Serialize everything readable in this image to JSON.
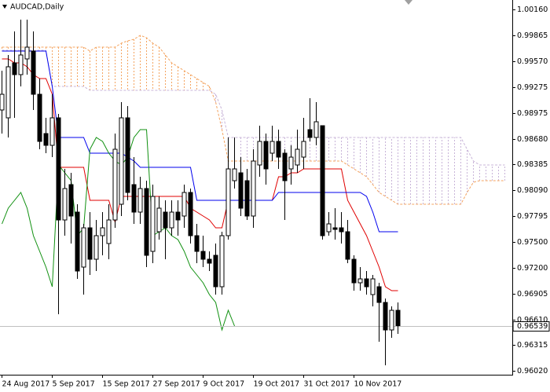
{
  "chart_data": {
    "type": "candlestick",
    "title": "AUDCAD,Daily",
    "categories": [
      "24 Aug 2017",
      null,
      null,
      null,
      null,
      null,
      null,
      null,
      "5 Sep 2017",
      null,
      null,
      null,
      null,
      null,
      null,
      null,
      "15 Sep 2017",
      null,
      null,
      null,
      null,
      null,
      null,
      null,
      "27 Sep 2017",
      null,
      null,
      null,
      null,
      null,
      null,
      null,
      "9 Oct 2017",
      null,
      null,
      null,
      null,
      null,
      null,
      null,
      "19 Oct 2017",
      null,
      null,
      null,
      null,
      null,
      null,
      null,
      "31 Oct 2017",
      null,
      null,
      null,
      null,
      null,
      null,
      null,
      "10 Nov 2017",
      null,
      null,
      null,
      null,
      null,
      null,
      null,
      null,
      null,
      null,
      null,
      null,
      null,
      null,
      null,
      null,
      null,
      null,
      null,
      null,
      null,
      null,
      null,
      null
    ],
    "open": [
      0.9901,
      0.9892,
      0.9955,
      0.99415,
      0.99595,
      0.99685,
      0.9919,
      0.9874,
      0.98605,
      0.9892,
      0.9775,
      0.98155,
      0.9784,
      0.9721,
      0.9766,
      0.973,
      0.9757,
      0.9748,
      0.9775,
      0.9793,
      0.9892,
      0.98155,
      0.9784,
      0.9811,
      0.9739,
      0.97615,
      0.9784,
      0.9766,
      0.9784,
      0.97795,
      0.98065,
      0.9757,
      0.9739,
      0.973,
      0.97345,
      0.96985,
      0.9757,
      0.982,
      0.9829,
      0.982,
      0.97795,
      0.9838,
      0.9865,
      0.98515,
      0.9865,
      0.98515,
      0.98335,
      0.9838,
      0.9847,
      0.98785,
      0.98695,
      0.9883,
      0.97615,
      0.9766,
      0.9766,
      0.97615,
      0.973,
      0.9703,
      0.97075,
      0.96895,
      0.96985,
      0.96805,
      0.9649,
      0.96715,
      null,
      null,
      null,
      null,
      null,
      null,
      null,
      null,
      null,
      null,
      null,
      null,
      null,
      null,
      null,
      null,
      null
    ],
    "high": [
      0.9946,
      0.9964,
      0.9991,
      1.00045,
      1.00045,
      0.9991,
      0.9937,
      0.9892,
      0.9919,
      0.98965,
      0.98335,
      0.9829,
      0.9793,
      0.97705,
      0.9784,
      0.9775,
      0.9784,
      0.9793,
      0.9874,
      0.991,
      0.99055,
      0.9847,
      0.98245,
      0.982,
      0.98155,
      0.9802,
      0.97975,
      0.97975,
      0.97975,
      0.98155,
      0.9811,
      0.97705,
      0.9757,
      0.9739,
      0.9748,
      0.97615,
      0.98695,
      0.98695,
      0.9847,
      0.98335,
      0.9856,
      0.9883,
      0.9874,
      0.9883,
      0.98785,
      0.9856,
      0.98605,
      0.98785,
      0.9892,
      0.99145,
      0.991,
      0.9883,
      0.9784,
      0.97885,
      0.9784,
      0.9775,
      0.97345,
      0.9721,
      0.97165,
      0.9712,
      0.9703,
      0.9685,
      0.9676,
      0.96805,
      null,
      null,
      null,
      null,
      null,
      null,
      null,
      null,
      null,
      null,
      null,
      null,
      null,
      null,
      null,
      null,
      null
    ],
    "low": [
      0.9874,
      0.98695,
      0.9892,
      0.9928,
      0.99415,
      0.9901,
      0.9856,
      0.98515,
      0.9847,
      0.9667,
      0.9757,
      0.9748,
      0.97075,
      0.96895,
      0.9712,
      0.97165,
      0.97345,
      0.973,
      0.9766,
      0.97795,
      0.97975,
      0.97705,
      0.97705,
      0.9721,
      0.97255,
      0.97525,
      0.973,
      0.9757,
      0.9757,
      0.9766,
      0.9748,
      0.97255,
      0.9721,
      0.97165,
      0.96895,
      0.96895,
      0.97525,
      0.9811,
      0.97795,
      0.9775,
      0.9766,
      0.98245,
      0.98155,
      0.98425,
      0.98335,
      0.9775,
      0.98155,
      0.9829,
      0.98335,
      0.9865,
      0.98605,
      0.97525,
      0.9757,
      0.97525,
      0.9748,
      0.97255,
      0.9694,
      0.9694,
      0.96895,
      0.9676,
      0.96355,
      0.96085,
      0.964,
      0.96445,
      null,
      null,
      null,
      null,
      null,
      null,
      null,
      null,
      null,
      null,
      null,
      null,
      null,
      null,
      null,
      null,
      null
    ],
    "close": [
      0.9919,
      0.99505,
      0.99415,
      0.9964,
      0.9973,
      0.9919,
      0.9865,
      0.98605,
      0.9892,
      0.9775,
      0.9811,
      0.97795,
      0.97165,
      0.9766,
      0.973,
      0.9757,
      0.9766,
      0.9775,
      0.9856,
      0.9892,
      0.98065,
      0.9784,
      0.9811,
      0.97345,
      0.9802,
      0.97885,
      0.9766,
      0.9784,
      0.9775,
      0.98065,
      0.9757,
      0.9739,
      0.973,
      0.97255,
      0.96985,
      0.9757,
      0.98335,
      0.98335,
      0.97885,
      0.97795,
      0.98425,
      0.9865,
      0.98335,
      0.9865,
      0.9847,
      0.982,
      0.9847,
      0.9856,
      0.9865,
      0.98695,
      0.98875,
      0.9757,
      0.97705,
      0.97642,
      0.97615,
      0.973,
      0.9703,
      0.97075,
      0.96985,
      0.97075,
      0.96805,
      0.9649,
      0.96715,
      0.96539,
      null,
      null,
      null,
      null,
      null,
      null,
      null,
      null,
      null,
      null,
      null,
      null,
      null,
      null,
      null,
      null,
      null
    ],
    "bull_color": "#ffffff",
    "bear_color": "#000000",
    "series": [
      {
        "color": "#e00000",
        "values": [
          0.99595,
          0.99595,
          0.9955,
          0.9955,
          0.99505,
          0.99415,
          0.9937,
          0.9937,
          0.9919,
          0.98353,
          0.98353,
          0.98353,
          0.98353,
          0.98353,
          0.97975,
          0.97975,
          0.97975,
          0.97975,
          0.97723,
          0.9802,
          0.9802,
          0.9802,
          0.9802,
          0.9802,
          0.9802,
          0.9802,
          0.9802,
          0.9802,
          0.9802,
          0.9802,
          0.97885,
          0.9784,
          0.97795,
          0.9775,
          0.9766,
          0.9766,
          0.97975,
          0.97975,
          0.97975,
          0.97975,
          0.97975,
          0.97975,
          0.97975,
          0.97975,
          0.98245,
          0.98245,
          0.9829,
          0.9829,
          0.98335,
          0.98335,
          0.98335,
          0.98335,
          0.98335,
          0.98335,
          0.98335,
          0.97975,
          0.9784,
          0.97705,
          0.9757,
          0.9739,
          0.9721,
          0.96985,
          0.9694,
          0.9694,
          null,
          null,
          null,
          null,
          null,
          null,
          null,
          null,
          null,
          null,
          null,
          null,
          null,
          null,
          null,
          null,
          null
        ]
      },
      {
        "color": "#0000ee",
        "values": [
          0.99685,
          0.99685,
          0.99685,
          0.99685,
          0.99685,
          0.99685,
          0.99685,
          0.99685,
          0.9928,
          0.98695,
          0.98695,
          0.98695,
          0.98695,
          0.98695,
          0.98515,
          0.98515,
          0.98515,
          0.98515,
          0.98515,
          0.98515,
          0.9847,
          0.98425,
          0.98353,
          0.98353,
          0.98353,
          0.98353,
          0.98353,
          0.98353,
          0.98353,
          0.98353,
          0.98353,
          0.97975,
          0.97975,
          0.97975,
          0.97975,
          0.97975,
          0.97975,
          0.97975,
          0.97975,
          0.97975,
          0.97975,
          0.97975,
          0.97975,
          0.97975,
          0.98065,
          0.98065,
          0.98065,
          0.98065,
          0.98065,
          0.98065,
          0.98065,
          0.98065,
          0.98065,
          0.98065,
          0.98065,
          0.98065,
          0.98065,
          0.98065,
          0.9802,
          0.9784,
          0.97615,
          0.97615,
          0.97615,
          0.97615,
          null,
          null,
          null,
          null,
          null,
          null,
          null,
          null,
          null,
          null,
          null,
          null,
          null,
          null,
          null,
          null,
          null
        ]
      },
      {
        "color": "#109010",
        "values": [
          0.97705,
          0.97885,
          0.97975,
          0.98065,
          0.97885,
          0.9757,
          0.9739,
          0.9721,
          0.96985,
          0.9838,
          0.9829,
          0.982,
          0.9757,
          0.9766,
          0.9856,
          0.98695,
          0.9865,
          0.98515,
          0.98425,
          0.9838,
          0.9847,
          0.98695,
          0.98785,
          0.98785,
          0.9757,
          0.97615,
          0.9766,
          0.9757,
          0.97525,
          0.9739,
          0.9721,
          0.9712,
          0.9703,
          0.96895,
          0.96805,
          0.9649,
          0.96715,
          0.96535,
          null,
          null,
          null,
          null,
          null,
          null,
          null,
          null,
          null,
          null,
          null,
          null,
          null,
          null,
          null,
          null,
          null,
          null,
          null,
          null,
          null,
          null,
          null,
          null,
          null,
          null,
          null,
          null,
          null,
          null,
          null,
          null,
          null,
          null,
          null,
          null,
          null,
          null,
          null,
          null,
          null,
          null,
          null
        ]
      }
    ],
    "cloud": {
      "span_a": {
        "color": "#f4a460",
        "values": [
          0.9973,
          0.9973,
          0.9973,
          0.9973,
          0.9973,
          0.9973,
          0.9973,
          0.9973,
          0.9973,
          0.9973,
          0.9973,
          0.9973,
          0.9973,
          0.9973,
          0.99685,
          0.9973,
          0.9973,
          0.9973,
          0.9973,
          0.99775,
          0.99802,
          0.9982,
          0.99865,
          0.99838,
          0.99775,
          0.9973,
          0.9964,
          0.9955,
          0.99505,
          0.9946,
          0.99415,
          0.9937,
          0.99325,
          0.9928,
          0.991,
          0.98785,
          0.98425,
          0.98425,
          0.98425,
          0.98425,
          0.98425,
          0.98425,
          0.98425,
          0.98425,
          0.98425,
          0.98425,
          0.98425,
          0.98425,
          0.98425,
          0.98425,
          0.98425,
          0.98425,
          0.98425,
          0.98425,
          0.98425,
          0.9838,
          0.98335,
          0.9829,
          0.98245,
          0.98155,
          0.98065,
          0.9802,
          0.97975,
          0.9793,
          0.9793,
          0.9793,
          0.9793,
          0.9793,
          0.9793,
          0.9793,
          0.9793,
          0.9793,
          0.9793,
          0.9793,
          0.98065,
          0.98182,
          0.982,
          0.982,
          0.982,
          0.982,
          0.982
        ]
      },
      "span_b": {
        "color": "#c8b4d8",
        "values": [
          0.99694,
          0.99694,
          0.99694,
          0.99694,
          0.99694,
          0.99694,
          0.99694,
          0.99694,
          0.9928,
          0.9928,
          0.9928,
          0.9928,
          0.9928,
          0.9928,
          0.99235,
          0.99235,
          0.99235,
          0.99235,
          0.99235,
          0.99235,
          0.99235,
          0.99235,
          0.99235,
          0.99235,
          0.99235,
          0.99235,
          0.99235,
          0.99235,
          0.99235,
          0.99235,
          0.99235,
          0.99235,
          0.99235,
          0.99235,
          0.9919,
          0.9901,
          0.98695,
          0.98695,
          0.98695,
          0.98695,
          0.98695,
          0.98695,
          0.98695,
          0.98695,
          0.98695,
          0.98695,
          0.98695,
          0.98695,
          0.98695,
          0.98695,
          0.98695,
          0.98695,
          0.98695,
          0.98695,
          0.98695,
          0.98695,
          0.98695,
          0.98695,
          0.98695,
          0.98695,
          0.98695,
          0.98695,
          0.98695,
          0.98695,
          0.98695,
          0.98695,
          0.98695,
          0.98695,
          0.98695,
          0.98695,
          0.98695,
          0.98695,
          0.98695,
          0.98695,
          0.9856,
          0.98425,
          0.9838,
          0.9838,
          0.9838,
          0.9838,
          0.9838
        ]
      }
    },
    "last_price": 0.96539,
    "ylim": [
      0.95986,
      1.0027
    ],
    "yticks": [
      {
        "value": 1.0016,
        "label": "1.00160"
      },
      0.99865,
      {
        "value": 0.9957,
        "label": "0.99570"
      },
      0.99275,
      0.98975,
      {
        "value": 0.9868,
        "label": "0.98680"
      },
      0.98385,
      {
        "value": 0.9809,
        "label": "0.98090"
      },
      0.97795,
      {
        "value": 0.975,
        "label": "0.97500"
      },
      {
        "value": 0.972,
        "label": "0.97200"
      },
      0.96905,
      {
        "value": 0.9661,
        "label": "0.96610"
      },
      0.96315,
      {
        "value": 0.9602,
        "label": "0.96020"
      }
    ]
  }
}
